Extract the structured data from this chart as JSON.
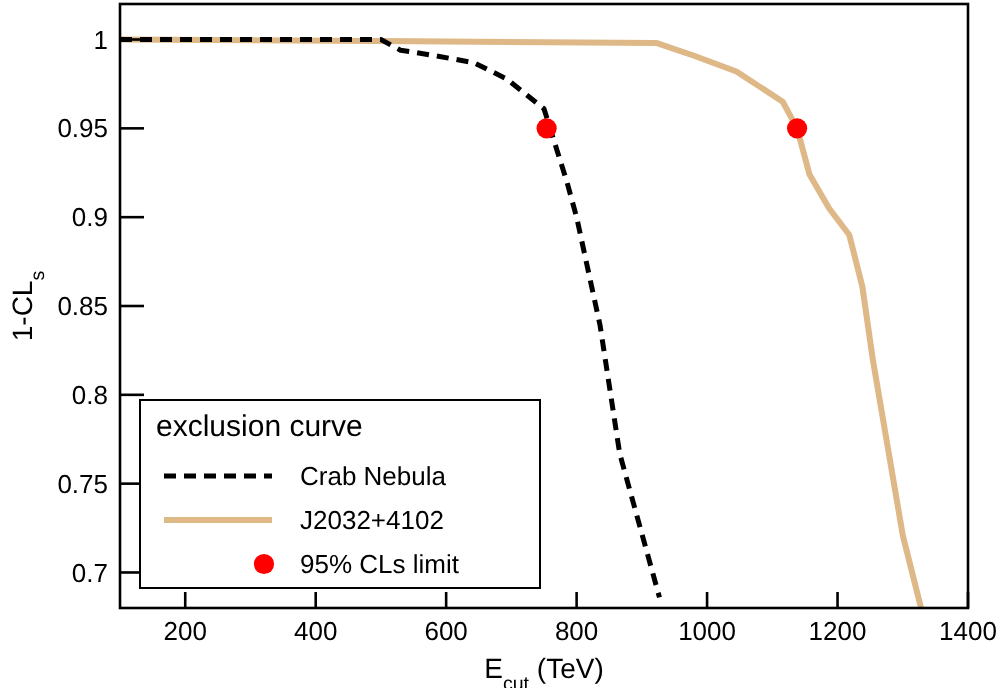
{
  "chart_data": {
    "type": "line",
    "xlabel": "E$_{cut}$ (TeV)",
    "ylabel": "1-CL$_{s}$",
    "legend_title": "exclusion curve",
    "legend": "bottom left",
    "grid": false,
    "xlim": [
      100,
      1400
    ],
    "xticks": [
      200,
      400,
      600,
      800,
      1000,
      1200,
      1400
    ],
    "ylim": [
      0.68,
      1.02
    ],
    "yticks": [
      0.7,
      0.75,
      0.8,
      0.85,
      0.9,
      0.95,
      1
    ],
    "series": [
      {
        "name": "Crab Nebula",
        "line_style": "dashed",
        "marker": "none",
        "color": "#000000",
        "x": [
          100,
          300,
          500,
          530,
          582,
          642,
          692,
          750,
          785,
          800,
          836,
          866,
          927
        ],
        "values": [
          1,
          1,
          1,
          0.994,
          0.991,
          0.987,
          0.978,
          0.961,
          0.92,
          0.9,
          0.839,
          0.767,
          0.686
        ]
      },
      {
        "name": "J2032+4102",
        "line_style": "solid",
        "marker": "none",
        "color": "#deb887",
        "x": [
          100,
          551,
          923,
          979,
          1045,
          1116,
          1138,
          1157,
          1187,
          1218,
          1238,
          1254,
          1300,
          1328
        ],
        "values": [
          1,
          0.999,
          0.998,
          0.991,
          0.982,
          0.965,
          0.95,
          0.924,
          0.905,
          0.89,
          0.861,
          0.82,
          0.721,
          0.68
        ]
      },
      {
        "name": "95% CLs limit",
        "type": "scatter",
        "marker": "circle",
        "color": "#ff0000",
        "x": [
          754,
          1138
        ],
        "values": [
          0.95,
          0.95
        ]
      }
    ]
  }
}
